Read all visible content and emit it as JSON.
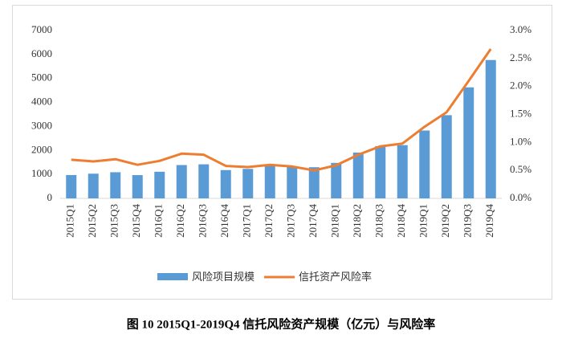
{
  "chart_data": {
    "type": "bar_line",
    "caption": "图 10    2015Q1-2019Q4 信托风险资产规模（亿元）与风险率",
    "categories": [
      "2015Q1",
      "2015Q2",
      "2015Q3",
      "2015Q4",
      "2016Q1",
      "2016Q2",
      "2016Q3",
      "2016Q4",
      "2017Q1",
      "2017Q2",
      "2017Q3",
      "2017Q4",
      "2018Q1",
      "2018Q2",
      "2018Q3",
      "2018Q4",
      "2019Q1",
      "2019Q2",
      "2019Q3",
      "2019Q4"
    ],
    "series": [
      {
        "name": "风险项目规模",
        "type": "bar",
        "color": "#5b9bd5",
        "values": [
          974,
          1030,
          1090,
          970,
          1110,
          1390,
          1420,
          1180,
          1230,
          1370,
          1330,
          1300,
          1480,
          1910,
          2180,
          2220,
          2830,
          3470,
          4630,
          5770
        ]
      },
      {
        "name": "信托资产风险率",
        "type": "line",
        "axis": "y2",
        "color": "#ed7d31",
        "values": [
          0.69,
          0.66,
          0.7,
          0.6,
          0.67,
          0.8,
          0.78,
          0.58,
          0.56,
          0.6,
          0.57,
          0.5,
          0.59,
          0.78,
          0.93,
          0.98,
          1.28,
          1.54,
          2.1,
          2.67
        ]
      }
    ],
    "ylim": [
      0,
      7000
    ],
    "yticks": [
      0,
      1000,
      2000,
      3000,
      4000,
      5000,
      6000,
      7000
    ],
    "y2lim": [
      0,
      3
    ],
    "y2ticks": [
      {
        "value": 0,
        "label": "0.0%"
      },
      {
        "value": 0.5,
        "label": "0.5%"
      },
      {
        "value": 1,
        "label": "1.0%"
      },
      {
        "value": 1.5,
        "label": "1.5%"
      },
      {
        "value": 2,
        "label": "2.0%"
      },
      {
        "value": 2.5,
        "label": "2.5%"
      },
      {
        "value": 3,
        "label": "3.0%"
      }
    ],
    "legend": "bottom"
  }
}
